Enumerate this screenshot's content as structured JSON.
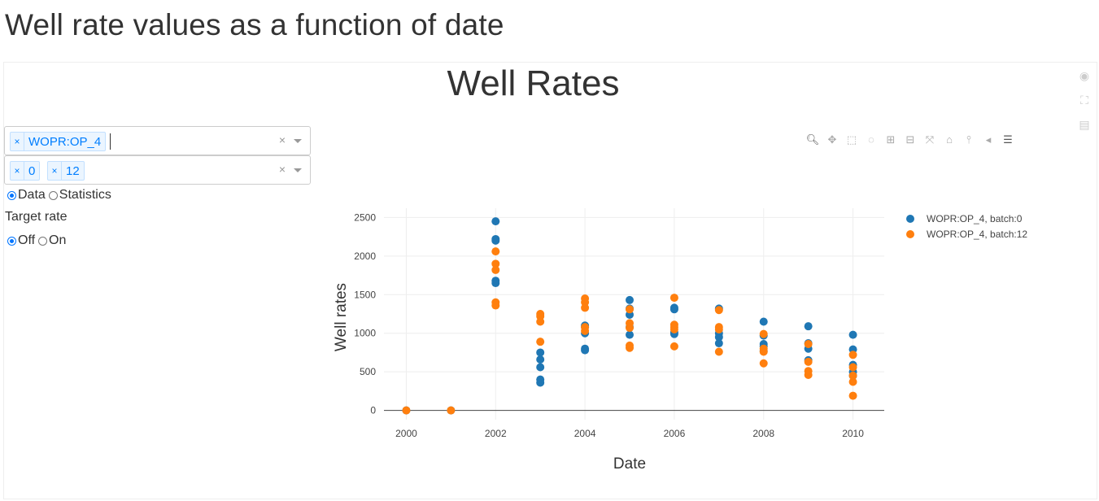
{
  "page": {
    "title": "Well rate values as a function of date"
  },
  "controls": {
    "vector_select": {
      "tags": [
        "WOPR:OP_4"
      ]
    },
    "batch_select": {
      "tags": [
        "0",
        "12"
      ]
    },
    "mode_radio": {
      "options": [
        "Data",
        "Statistics"
      ],
      "selected": "Data"
    },
    "target_label": "Target rate",
    "target_radio": {
      "options": [
        "Off",
        "On"
      ],
      "selected": "Off"
    }
  },
  "icons": {
    "tag_remove": "×",
    "clear": "×"
  },
  "chart_data": {
    "type": "scatter",
    "title": "Well Rates",
    "xlabel": "Date",
    "ylabel": "Well rates",
    "xlim": [
      1999.5,
      2010.7
    ],
    "ylim": [
      -120,
      2620
    ],
    "xticks": [
      2000,
      2002,
      2004,
      2006,
      2008,
      2010
    ],
    "yticks": [
      0,
      500,
      1000,
      1500,
      2000,
      2500
    ],
    "grid": true,
    "legend": "top-right",
    "series": [
      {
        "name": "WOPR:OP_4, batch:0",
        "color": "#1f77b4",
        "points": [
          [
            2000,
            0
          ],
          [
            2001,
            0
          ],
          [
            2002,
            2450
          ],
          [
            2002,
            2220
          ],
          [
            2002,
            2200
          ],
          [
            2002,
            1680
          ],
          [
            2002,
            1650
          ],
          [
            2003,
            750
          ],
          [
            2003,
            660
          ],
          [
            2003,
            560
          ],
          [
            2003,
            400
          ],
          [
            2003,
            360
          ],
          [
            2004,
            1100
          ],
          [
            2004,
            1080
          ],
          [
            2004,
            1000
          ],
          [
            2004,
            800
          ],
          [
            2004,
            780
          ],
          [
            2005,
            1430
          ],
          [
            2005,
            1320
          ],
          [
            2005,
            1240
          ],
          [
            2005,
            1080
          ],
          [
            2005,
            980
          ],
          [
            2006,
            1330
          ],
          [
            2006,
            1310
          ],
          [
            2006,
            1010
          ],
          [
            2006,
            990
          ],
          [
            2007,
            1320
          ],
          [
            2007,
            1000
          ],
          [
            2007,
            950
          ],
          [
            2007,
            870
          ],
          [
            2008,
            1150
          ],
          [
            2008,
            970
          ],
          [
            2008,
            860
          ],
          [
            2008,
            830
          ],
          [
            2008,
            770
          ],
          [
            2009,
            1090
          ],
          [
            2009,
            870
          ],
          [
            2009,
            800
          ],
          [
            2009,
            650
          ],
          [
            2010,
            980
          ],
          [
            2010,
            790
          ],
          [
            2010,
            590
          ],
          [
            2010,
            500
          ],
          [
            2010,
            450
          ]
        ]
      },
      {
        "name": "WOPR:OP_4, batch:12",
        "color": "#ff7f0e",
        "points": [
          [
            2000,
            0
          ],
          [
            2001,
            0
          ],
          [
            2002,
            2060
          ],
          [
            2002,
            1900
          ],
          [
            2002,
            1820
          ],
          [
            2002,
            1400
          ],
          [
            2002,
            1360
          ],
          [
            2003,
            1250
          ],
          [
            2003,
            1220
          ],
          [
            2003,
            1150
          ],
          [
            2003,
            890
          ],
          [
            2004,
            1450
          ],
          [
            2004,
            1400
          ],
          [
            2004,
            1330
          ],
          [
            2004,
            1080
          ],
          [
            2004,
            1030
          ],
          [
            2005,
            1310
          ],
          [
            2005,
            1130
          ],
          [
            2005,
            1070
          ],
          [
            2005,
            840
          ],
          [
            2005,
            810
          ],
          [
            2006,
            1460
          ],
          [
            2006,
            1110
          ],
          [
            2006,
            1080
          ],
          [
            2006,
            1050
          ],
          [
            2006,
            830
          ],
          [
            2007,
            1300
          ],
          [
            2007,
            1080
          ],
          [
            2007,
            1050
          ],
          [
            2007,
            760
          ],
          [
            2008,
            990
          ],
          [
            2008,
            800
          ],
          [
            2008,
            760
          ],
          [
            2008,
            610
          ],
          [
            2009,
            860
          ],
          [
            2009,
            630
          ],
          [
            2009,
            510
          ],
          [
            2009,
            460
          ],
          [
            2010,
            720
          ],
          [
            2010,
            560
          ],
          [
            2010,
            450
          ],
          [
            2010,
            370
          ],
          [
            2010,
            190
          ]
        ]
      }
    ]
  }
}
